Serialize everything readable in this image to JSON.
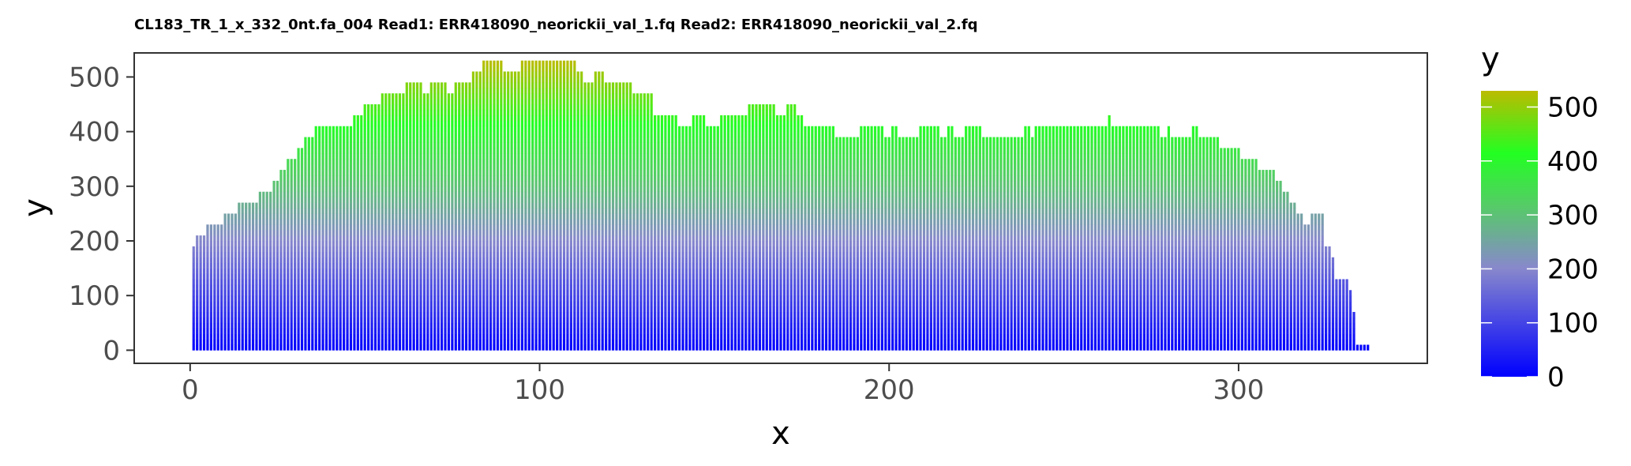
{
  "chart_data": {
    "type": "bar",
    "title": "CL183_TR_1_x_332_0nt.fa_004 Read1: ERR418090_neorickii_val_1.fq Read2: ERR418090_neorickii_val_2.fq",
    "xlabel": "x",
    "ylabel": "y",
    "xlim": [
      -16,
      354
    ],
    "ylim": [
      -24,
      544
    ],
    "xticks": [
      0,
      100,
      200,
      300
    ],
    "yticks": [
      0,
      100,
      200,
      300,
      400,
      500
    ],
    "grid": false,
    "legend": {
      "title": "y",
      "placement": "right",
      "type": "colorbar",
      "range": [
        0,
        530
      ],
      "ticks": [
        0,
        100,
        200,
        300,
        400,
        500
      ]
    },
    "colors": {
      "gradient": [
        {
          "stop": 0,
          "color": "#0000ff"
        },
        {
          "stop": 0.38,
          "color": "#8888cc"
        },
        {
          "stop": 0.6,
          "color": "#55cc66"
        },
        {
          "stop": 0.78,
          "color": "#22ff22"
        },
        {
          "stop": 1,
          "color": "#bbbb00"
        }
      ],
      "panel_border": "#333333",
      "axis_text": "#4d4d4d"
    },
    "keypoints": [
      [
        1,
        190
      ],
      [
        2,
        210
      ],
      [
        4,
        210
      ],
      [
        5,
        230
      ],
      [
        9,
        230
      ],
      [
        10,
        250
      ],
      [
        13,
        250
      ],
      [
        14,
        270
      ],
      [
        19,
        270
      ],
      [
        20,
        290
      ],
      [
        23,
        290
      ],
      [
        24,
        310
      ],
      [
        26,
        330
      ],
      [
        28,
        350
      ],
      [
        31,
        370
      ],
      [
        33,
        390
      ],
      [
        36,
        410
      ],
      [
        46,
        410
      ],
      [
        47,
        430
      ],
      [
        50,
        450
      ],
      [
        54,
        450
      ],
      [
        55,
        470
      ],
      [
        61,
        470
      ],
      [
        62,
        490
      ],
      [
        66,
        490
      ],
      [
        67,
        470
      ],
      [
        69,
        490
      ],
      [
        73,
        490
      ],
      [
        74,
        470
      ],
      [
        76,
        490
      ],
      [
        80,
        490
      ],
      [
        81,
        510
      ],
      [
        84,
        530
      ],
      [
        89,
        530
      ],
      [
        90,
        510
      ],
      [
        94,
        510
      ],
      [
        95,
        530
      ],
      [
        110,
        530
      ],
      [
        111,
        510
      ],
      [
        113,
        490
      ],
      [
        115,
        490
      ],
      [
        116,
        510
      ],
      [
        119,
        490
      ],
      [
        126,
        490
      ],
      [
        127,
        470
      ],
      [
        132,
        470
      ],
      [
        133,
        430
      ],
      [
        139,
        430
      ],
      [
        140,
        410
      ],
      [
        143,
        410
      ],
      [
        144,
        430
      ],
      [
        147,
        430
      ],
      [
        148,
        410
      ],
      [
        151,
        410
      ],
      [
        152,
        430
      ],
      [
        159,
        430
      ],
      [
        160,
        450
      ],
      [
        167,
        450
      ],
      [
        168,
        430
      ],
      [
        170,
        430
      ],
      [
        171,
        450
      ],
      [
        173,
        450
      ],
      [
        174,
        430
      ],
      [
        176,
        410
      ],
      [
        184,
        410
      ],
      [
        185,
        390
      ],
      [
        191,
        390
      ],
      [
        192,
        410
      ],
      [
        198,
        410
      ],
      [
        199,
        390
      ],
      [
        201,
        410
      ],
      [
        203,
        390
      ],
      [
        208,
        390
      ],
      [
        209,
        410
      ],
      [
        214,
        410
      ],
      [
        215,
        390
      ],
      [
        217,
        410
      ],
      [
        219,
        390
      ],
      [
        221,
        390
      ],
      [
        222,
        410
      ],
      [
        226,
        410
      ],
      [
        227,
        390
      ],
      [
        238,
        390
      ],
      [
        239,
        410
      ],
      [
        241,
        390
      ],
      [
        242,
        410
      ],
      [
        262,
        410
      ],
      [
        263,
        430
      ],
      [
        264,
        410
      ],
      [
        277,
        410
      ],
      [
        278,
        390
      ],
      [
        280,
        410
      ],
      [
        281,
        390
      ],
      [
        286,
        390
      ],
      [
        287,
        410
      ],
      [
        289,
        390
      ],
      [
        294,
        390
      ],
      [
        295,
        370
      ],
      [
        300,
        370
      ],
      [
        301,
        350
      ],
      [
        305,
        350
      ],
      [
        306,
        330
      ],
      [
        310,
        330
      ],
      [
        311,
        310
      ],
      [
        313,
        290
      ],
      [
        315,
        270
      ],
      [
        317,
        250
      ],
      [
        319,
        230
      ],
      [
        321,
        250
      ],
      [
        324,
        250
      ],
      [
        325,
        190
      ],
      [
        327,
        170
      ],
      [
        328,
        130
      ],
      [
        331,
        130
      ],
      [
        332,
        110
      ],
      [
        333,
        70
      ],
      [
        334,
        10
      ],
      [
        337,
        10
      ]
    ]
  }
}
